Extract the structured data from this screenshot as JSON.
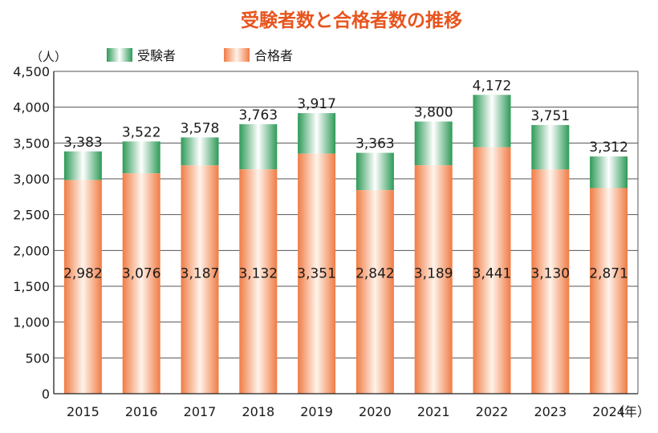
{
  "chart_data": {
    "type": "bar",
    "title": "受験者数と合格者数の推移",
    "yunit": "（人）",
    "xunit": "（年）",
    "categories": [
      "2015",
      "2016",
      "2017",
      "2018",
      "2019",
      "2020",
      "2021",
      "2022",
      "2023",
      "2024"
    ],
    "series": [
      {
        "name": "受験者",
        "values": [
          3383,
          3522,
          3578,
          3763,
          3917,
          3363,
          3800,
          4172,
          3751,
          3312
        ],
        "color": "#2e9a58"
      },
      {
        "name": "合格者",
        "values": [
          2982,
          3076,
          3187,
          3132,
          3351,
          2842,
          3189,
          3441,
          3130,
          2871
        ],
        "color": "#f0834f"
      }
    ],
    "ylim": [
      0,
      4500
    ],
    "yticks": [
      "0",
      "500",
      "1,000",
      "1,500",
      "2,000",
      "2,500",
      "3,000",
      "3,500",
      "4,000",
      "4,500"
    ],
    "total_labels": [
      "3,383",
      "3,522",
      "3,578",
      "3,763",
      "3,917",
      "3,363",
      "3,800",
      "4,172",
      "3,751",
      "3,312"
    ],
    "pass_labels": [
      "2,982",
      "3,076",
      "3,187",
      "3,132",
      "3,351",
      "2,842",
      "3,189",
      "3,441",
      "3,130",
      "2,871"
    ],
    "grid": true,
    "legend_position": "top-left"
  }
}
